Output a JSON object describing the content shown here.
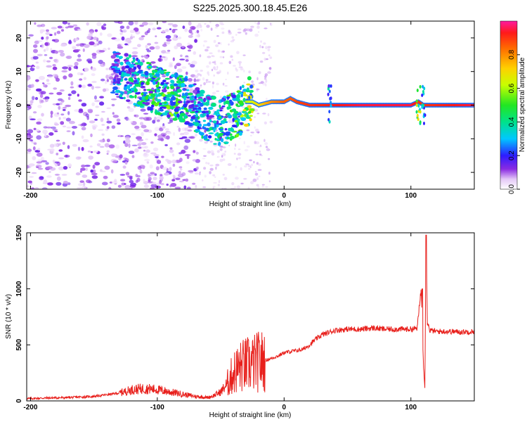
{
  "chart_data": [
    {
      "type": "heatmap",
      "title": "S225.2025.300.18.45.E26",
      "xlabel": "Height of straight line (km)",
      "ylabel": "Frequency (Hz)",
      "xlim": [
        -203,
        150
      ],
      "ylim": [
        -25,
        25
      ],
      "xticks": [
        -200,
        -100,
        0,
        100
      ],
      "yticks": [
        -20,
        -10,
        0,
        10,
        20
      ],
      "colorbar": {
        "label": "Normalized spectral amplitude",
        "range": [
          0.0,
          1.0
        ],
        "ticks": [
          0.0,
          0.2,
          0.4,
          0.6,
          0.8
        ]
      },
      "ridge": {
        "x": [
          -130,
          -110,
          -90,
          -75,
          -60,
          -50,
          -42,
          -35,
          -30,
          -25,
          -20,
          -10,
          0,
          5,
          10,
          20,
          35,
          60,
          100,
          106,
          110,
          150
        ],
        "y": [
          9,
          6,
          3,
          1,
          -4,
          -5,
          -4,
          -2,
          1,
          1,
          0,
          1,
          1,
          2,
          1,
          0,
          0,
          0,
          0,
          1,
          0,
          0
        ],
        "amplitude": [
          0.3,
          0.45,
          0.5,
          0.4,
          0.35,
          0.4,
          0.45,
          0.5,
          0.6,
          0.65,
          0.7,
          0.8,
          0.85,
          0.85,
          0.88,
          0.9,
          0.92,
          0.95,
          0.95,
          0.9,
          0.9,
          0.95
        ]
      }
    },
    {
      "type": "line",
      "xlabel": "Height of straight line (km)",
      "ylabel": "SNR (10 * v/v)",
      "xlim": [
        -203,
        150
      ],
      "ylim": [
        0,
        1500
      ],
      "xticks": [
        -200,
        -100,
        0,
        100
      ],
      "yticks": [
        0,
        500,
        1000,
        1500
      ],
      "line_color": "#e8201c",
      "x": [
        -203,
        -190,
        -170,
        -150,
        -130,
        -120,
        -110,
        -100,
        -90,
        -80,
        -70,
        -60,
        -55,
        -50,
        -45,
        -40,
        -35,
        -30,
        -25,
        -20,
        -15,
        -10,
        -5,
        0,
        5,
        10,
        15,
        20,
        25,
        30,
        35,
        40,
        50,
        60,
        70,
        80,
        90,
        100,
        105,
        108,
        110,
        111,
        112,
        113,
        115,
        120,
        130,
        140,
        150
      ],
      "y": [
        20,
        25,
        30,
        40,
        70,
        100,
        110,
        100,
        80,
        60,
        40,
        30,
        50,
        80,
        150,
        250,
        300,
        320,
        330,
        350,
        360,
        380,
        400,
        430,
        440,
        450,
        460,
        500,
        550,
        590,
        610,
        630,
        640,
        640,
        650,
        640,
        640,
        640,
        650,
        1000,
        300,
        120,
        1480,
        700,
        630,
        620,
        620,
        615,
        620
      ]
    }
  ]
}
